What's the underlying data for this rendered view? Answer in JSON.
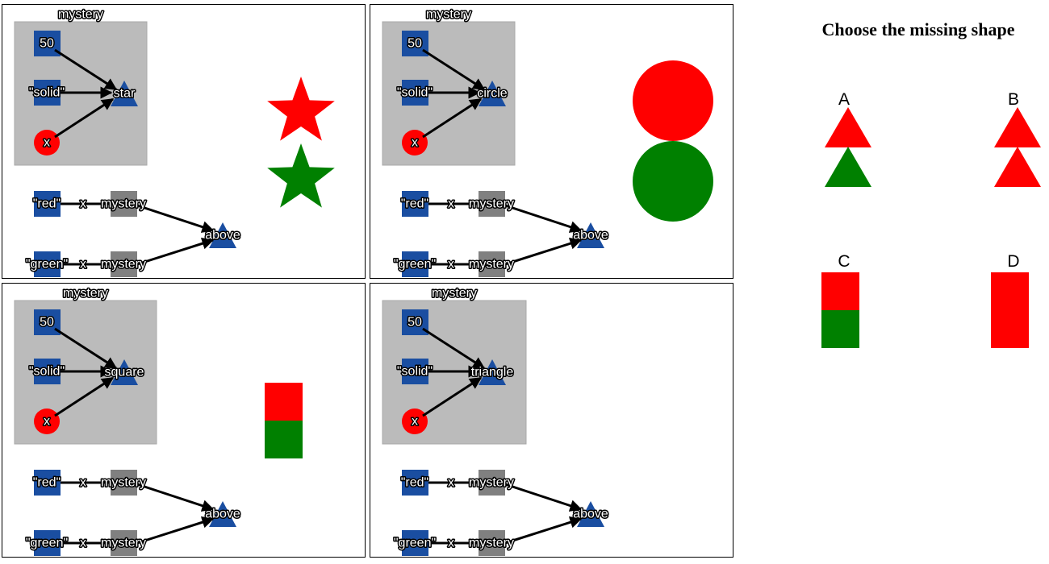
{
  "question": "Choose the missing shape",
  "colors": {
    "node_blue": "#1a4ea1",
    "func_gray": "#808080",
    "box_gray": "#bbbbbb",
    "param_red": "#ff0000",
    "red": "#ff0000",
    "green": "#008000"
  },
  "panels": [
    {
      "mystery_label": "mystery",
      "size_label": "50",
      "mode_label": "\"solid\"",
      "param_label": "x",
      "shape_label": "star",
      "color1_label": "\"red\"",
      "color2_label": "\"green\"",
      "x1_label": "x",
      "x2_label": "x",
      "call1_label": "mystery",
      "call2_label": "mystery",
      "combine_label": "above",
      "result_shape": "star",
      "result_colors": [
        "red",
        "green"
      ]
    },
    {
      "mystery_label": "mystery",
      "size_label": "50",
      "mode_label": "\"solid\"",
      "param_label": "x",
      "shape_label": "circle",
      "color1_label": "\"red\"",
      "color2_label": "\"green\"",
      "x1_label": "x",
      "x2_label": "x",
      "call1_label": "mystery",
      "call2_label": "mystery",
      "combine_label": "above",
      "result_shape": "circle",
      "result_colors": [
        "red",
        "green"
      ]
    },
    {
      "mystery_label": "mystery",
      "size_label": "50",
      "mode_label": "\"solid\"",
      "param_label": "x",
      "shape_label": "square",
      "color1_label": "\"red\"",
      "color2_label": "\"green\"",
      "x1_label": "x",
      "x2_label": "x",
      "call1_label": "mystery",
      "call2_label": "mystery",
      "combine_label": "above",
      "result_shape": "square",
      "result_colors": [
        "red",
        "green"
      ]
    },
    {
      "mystery_label": "mystery",
      "size_label": "50",
      "mode_label": "\"solid\"",
      "param_label": "x",
      "shape_label": "triangle",
      "color1_label": "\"red\"",
      "color2_label": "\"green\"",
      "x1_label": "x",
      "x2_label": "x",
      "call1_label": "mystery",
      "call2_label": "mystery",
      "combine_label": "above",
      "result_shape": "none",
      "result_colors": []
    }
  ],
  "options": [
    {
      "label": "A",
      "shape": "triangle",
      "colors": [
        "red",
        "green"
      ]
    },
    {
      "label": "B",
      "shape": "triangle",
      "colors": [
        "red",
        "red"
      ]
    },
    {
      "label": "C",
      "shape": "square",
      "colors": [
        "red",
        "green"
      ]
    },
    {
      "label": "D",
      "shape": "square",
      "colors": [
        "red",
        "red"
      ]
    }
  ]
}
